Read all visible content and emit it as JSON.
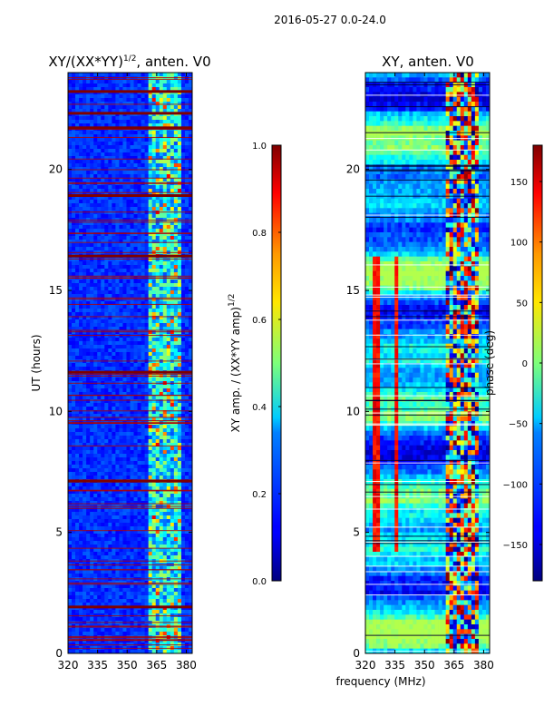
{
  "figure": {
    "suptitle": "2016-05-27 0.0-24.0",
    "shared_xlabel": "frequency (MHz)"
  },
  "chart_data": [
    {
      "type": "heatmap",
      "title": "XY/(XX*YY)",
      "title_superscript": "1/2",
      "title_suffix": ", anten. V0",
      "xlabel": "",
      "ylabel": "UT (hours)",
      "xlim": [
        320,
        383
      ],
      "ylim": [
        0,
        24
      ],
      "xticks": [
        "320",
        "335",
        "350",
        "365",
        "380"
      ],
      "xtick_values": [
        320,
        335,
        350,
        365,
        380
      ],
      "yticks": [
        "0",
        "5",
        "10",
        "15",
        "20"
      ],
      "ytick_values": [
        0,
        5,
        10,
        15,
        20
      ],
      "colormap": "jet",
      "colorbar": {
        "label": "XY amp. / (XX*YY amp)",
        "label_superscript": "1/2",
        "range": [
          0.0,
          1.0
        ],
        "ticks": [
          "0.0",
          "0.2",
          "0.4",
          "0.6",
          "0.8",
          "1.0"
        ],
        "tick_values": [
          0.0,
          0.2,
          0.4,
          0.6,
          0.8,
          1.0
        ]
      },
      "features": {
        "bright_band_freq_MHz": [
          360,
          378
        ],
        "saturated_hours": [
          1.9,
          7.1,
          11.6,
          16.4,
          18.9,
          21.7,
          22.3,
          23.2
        ]
      }
    },
    {
      "type": "heatmap",
      "title": "XY, anten. V0",
      "xlabel": "",
      "ylabel": "",
      "xlim": [
        320,
        383
      ],
      "ylim": [
        0,
        24
      ],
      "xticks": [
        "320",
        "335",
        "350",
        "365",
        "380"
      ],
      "xtick_values": [
        320,
        335,
        350,
        365,
        380
      ],
      "yticks": [
        "0",
        "5",
        "10",
        "15",
        "20"
      ],
      "ytick_values": [
        0,
        5,
        10,
        15,
        20
      ],
      "colormap": "jet",
      "colorbar": {
        "label": "phase (deg)",
        "range": [
          -180,
          180
        ],
        "ticks": [
          "−150",
          "−100",
          "−50",
          "0",
          "50",
          "100",
          "150"
        ],
        "tick_values": [
          -150,
          -100,
          -50,
          0,
          50,
          100,
          150
        ]
      },
      "features": {
        "red_phase_columns_MHz": [
          326,
          336
        ],
        "band_columns_MHz": [
          360,
          378
        ]
      }
    }
  ]
}
